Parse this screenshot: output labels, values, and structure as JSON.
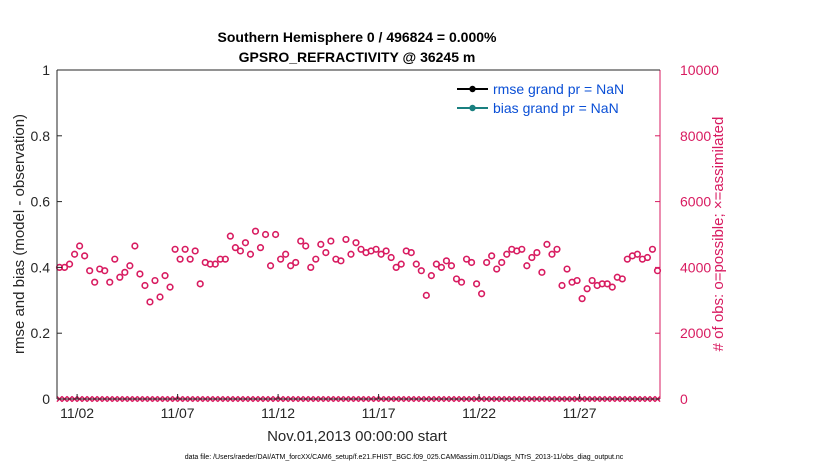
{
  "chart_data": {
    "type": "scatter",
    "title": "Southern Hemisphere 0 / 496824 = 0.000%",
    "subtitle": "GPSRO_REFRACTIVITY @ 36245 m",
    "xlabel": "Nov.01,2013 00:00:00 start",
    "ylabel_left": "rmse and bias (model - observation)",
    "ylabel_right": "# of obs: o=possible; ×=assimilated",
    "x_range": [
      1.0,
      31.0
    ],
    "ylim_left": [
      0,
      1
    ],
    "ylim_right": [
      0,
      10000
    ],
    "x_ticks": [
      {
        "value": 2,
        "label": "11/02"
      },
      {
        "value": 7,
        "label": "11/07"
      },
      {
        "value": 12,
        "label": "11/12"
      },
      {
        "value": 17,
        "label": "11/17"
      },
      {
        "value": 22,
        "label": "11/22"
      },
      {
        "value": 27,
        "label": "11/27"
      }
    ],
    "y_ticks_left": [
      {
        "value": 0,
        "label": "0"
      },
      {
        "value": 0.2,
        "label": "0.2"
      },
      {
        "value": 0.4,
        "label": "0.4"
      },
      {
        "value": 0.6,
        "label": "0.6"
      },
      {
        "value": 0.8,
        "label": "0.8"
      },
      {
        "value": 1,
        "label": "1"
      }
    ],
    "y_ticks_right": [
      {
        "value": 0,
        "label": "0"
      },
      {
        "value": 2000,
        "label": "2000"
      },
      {
        "value": 4000,
        "label": "4000"
      },
      {
        "value": 6000,
        "label": "6000"
      },
      {
        "value": 8000,
        "label": "8000"
      },
      {
        "value": 10000,
        "label": "10000"
      }
    ],
    "legend": {
      "position": "top-right",
      "entries": [
        {
          "label": "rmse grand pr = NaN",
          "color": "#000000"
        },
        {
          "label": "bias grand pr = NaN",
          "color": "#1a8080"
        }
      ]
    },
    "obs_possible": {
      "name": "possible",
      "marker": "o",
      "color": "#d81b60",
      "x": [
        1.125,
        1.375,
        1.625,
        1.875,
        2.125,
        2.375,
        2.625,
        2.875,
        3.125,
        3.375,
        3.625,
        3.875,
        4.125,
        4.375,
        4.625,
        4.875,
        5.125,
        5.375,
        5.625,
        5.875,
        6.125,
        6.375,
        6.625,
        6.875,
        7.125,
        7.375,
        7.625,
        7.875,
        8.125,
        8.375,
        8.625,
        8.875,
        9.125,
        9.375,
        9.625,
        9.875,
        10.125,
        10.375,
        10.625,
        10.875,
        11.125,
        11.375,
        11.625,
        11.875,
        12.125,
        12.375,
        12.625,
        12.875,
        13.125,
        13.375,
        13.625,
        13.875,
        14.125,
        14.375,
        14.625,
        14.875,
        15.125,
        15.375,
        15.625,
        15.875,
        16.125,
        16.375,
        16.625,
        16.875,
        17.125,
        17.375,
        17.625,
        17.875,
        18.125,
        18.375,
        18.625,
        18.875,
        19.125,
        19.375,
        19.625,
        19.875,
        20.125,
        20.375,
        20.625,
        20.875,
        21.125,
        21.375,
        21.625,
        21.875,
        22.125,
        22.375,
        22.625,
        22.875,
        23.125,
        23.375,
        23.625,
        23.875,
        24.125,
        24.375,
        24.625,
        24.875,
        25.125,
        25.375,
        25.625,
        25.875,
        26.125,
        26.375,
        26.625,
        26.875,
        27.125,
        27.375,
        27.625,
        27.875,
        28.125,
        28.375,
        28.625,
        28.875,
        29.125,
        29.375,
        29.625,
        29.875,
        30.125,
        30.375,
        30.625,
        30.875
      ],
      "values": [
        4000,
        4000,
        4100,
        4400,
        4650,
        4350,
        3900,
        3550,
        3950,
        3900,
        3550,
        4250,
        3700,
        3850,
        4050,
        4650,
        3800,
        3450,
        2950,
        3600,
        3100,
        3750,
        3400,
        4550,
        4250,
        4550,
        4250,
        4500,
        3500,
        4150,
        4100,
        4100,
        4250,
        4250,
        4950,
        4600,
        4500,
        4750,
        4400,
        5100,
        4600,
        5000,
        4050,
        5000,
        4250,
        4400,
        4050,
        4150,
        4800,
        4650,
        4000,
        4250,
        4700,
        4450,
        4800,
        4250,
        4200,
        4850,
        4400,
        4750,
        4550,
        4450,
        4500,
        4550,
        4400,
        4500,
        4300,
        4000,
        4100,
        4500,
        4450,
        4100,
        3900,
        3150,
        3750,
        4100,
        4000,
        4200,
        4050,
        3650,
        3550,
        4250,
        4150,
        3500,
        3200,
        4150,
        4350,
        3950,
        4150,
        4400,
        4550,
        4500,
        4550,
        4050,
        4300,
        4450,
        3850,
        4700,
        4400,
        4550,
        3450,
        3950,
        3550,
        3600,
        3050,
        3350,
        3600,
        3450,
        3500,
        3500,
        3400,
        3700,
        3650,
        4250,
        4350,
        4400,
        4250,
        4300,
        4550,
        3900
      ]
    },
    "obs_assimilated": {
      "name": "assimilated",
      "marker": "×",
      "color": "#d81b60",
      "x": [
        1.125,
        1.375,
        1.625,
        1.875,
        2.125,
        2.375,
        2.625,
        2.875,
        3.125,
        3.375,
        3.625,
        3.875,
        4.125,
        4.375,
        4.625,
        4.875,
        5.125,
        5.375,
        5.625,
        5.875,
        6.125,
        6.375,
        6.625,
        6.875,
        7.125,
        7.375,
        7.625,
        7.875,
        8.125,
        8.375,
        8.625,
        8.875,
        9.125,
        9.375,
        9.625,
        9.875,
        10.125,
        10.375,
        10.625,
        10.875,
        11.125,
        11.375,
        11.625,
        11.875,
        12.125,
        12.375,
        12.625,
        12.875,
        13.125,
        13.375,
        13.625,
        13.875,
        14.125,
        14.375,
        14.625,
        14.875,
        15.125,
        15.375,
        15.625,
        15.875,
        16.125,
        16.375,
        16.625,
        16.875,
        17.125,
        17.375,
        17.625,
        17.875,
        18.125,
        18.375,
        18.625,
        18.875,
        19.125,
        19.375,
        19.625,
        19.875,
        20.125,
        20.375,
        20.625,
        20.875,
        21.125,
        21.375,
        21.625,
        21.875,
        22.125,
        22.375,
        22.625,
        22.875,
        23.125,
        23.375,
        23.625,
        23.875,
        24.125,
        24.375,
        24.625,
        24.875,
        25.125,
        25.375,
        25.625,
        25.875,
        26.125,
        26.375,
        26.625,
        26.875,
        27.125,
        27.375,
        27.625,
        27.875,
        28.125,
        28.375,
        28.625,
        28.875,
        29.125,
        29.375,
        29.625,
        29.875,
        30.125,
        30.375,
        30.625,
        30.875
      ],
      "values": [
        0,
        0,
        0,
        0,
        0,
        0,
        0,
        0,
        0,
        0,
        0,
        0,
        0,
        0,
        0,
        0,
        0,
        0,
        0,
        0,
        0,
        0,
        0,
        0,
        0,
        0,
        0,
        0,
        0,
        0,
        0,
        0,
        0,
        0,
        0,
        0,
        0,
        0,
        0,
        0,
        0,
        0,
        0,
        0,
        0,
        0,
        0,
        0,
        0,
        0,
        0,
        0,
        0,
        0,
        0,
        0,
        0,
        0,
        0,
        0,
        0,
        0,
        0,
        0,
        0,
        0,
        0,
        0,
        0,
        0,
        0,
        0,
        0,
        0,
        0,
        0,
        0,
        0,
        0,
        0,
        0,
        0,
        0,
        0,
        0,
        0,
        0,
        0,
        0,
        0,
        0,
        0,
        0,
        0,
        0,
        0,
        0,
        0,
        0,
        0,
        0,
        0,
        0,
        0,
        0,
        0,
        0,
        0,
        0,
        0,
        0,
        0,
        0,
        0,
        0,
        0,
        0,
        0,
        0,
        0
      ]
    },
    "footer": "data file: /Users/raeder/DAI/ATM_forcXX/CAM6_setup/f.e21.FHIST_BGC.f09_025.CAM6assim.011/Diags_NTrS_2013-11/obs_diag_output.nc"
  }
}
